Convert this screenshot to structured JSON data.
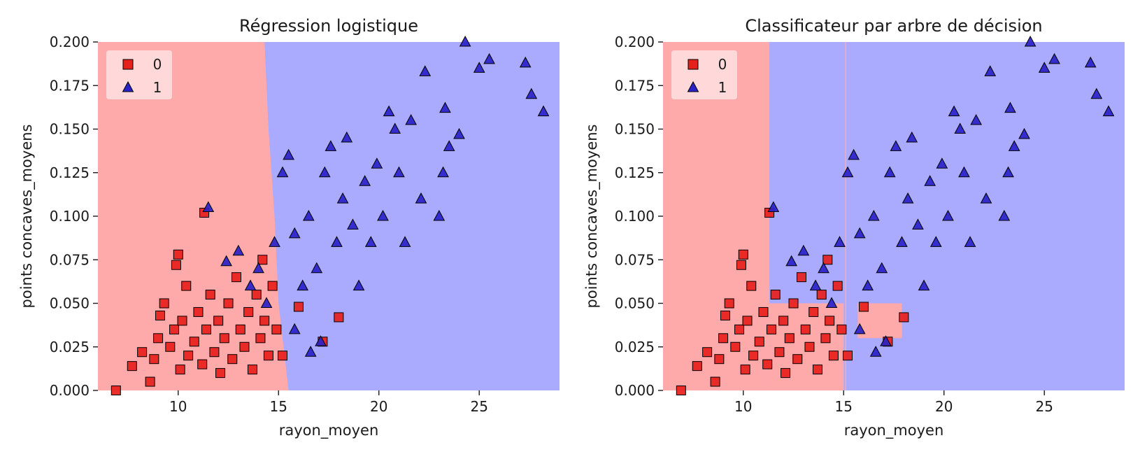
{
  "figure": {
    "panels": [
      {
        "title": "Régression logistique",
        "xlabel": "rayon_moyen",
        "ylabel": "points concaves_moyens"
      },
      {
        "title": "Classificateur par arbre de décision",
        "xlabel": "rayon_moyen",
        "ylabel": "points concaves_moyens"
      }
    ],
    "legend": [
      {
        "label": "0",
        "marker": "square",
        "color": "#e8201c"
      },
      {
        "label": "1",
        "marker": "triangle",
        "color": "#2a22c8"
      }
    ],
    "colors": {
      "region_0": "#ffaaaa",
      "region_1": "#aaaaff",
      "class_0": "#e8201c",
      "class_1": "#2a22c8"
    }
  },
  "chart_data": [
    {
      "type": "scatter",
      "title": "Régression logistique",
      "xlabel": "rayon_moyen",
      "ylabel": "points concaves_moyens",
      "xlim": [
        6,
        29
      ],
      "ylim": [
        0,
        0.2
      ],
      "xticks": [
        "10",
        "15",
        "20",
        "25"
      ],
      "yticks": [
        "0.000",
        "0.025",
        "0.050",
        "0.075",
        "0.100",
        "0.125",
        "0.150",
        "0.175",
        "0.200"
      ],
      "legend_position": "top-left",
      "decision_boundary": {
        "class_0_region": "left",
        "boundary_points": [
          [
            15.5,
            0.0
          ],
          [
            15.0,
            0.05
          ],
          [
            14.8,
            0.1
          ],
          [
            14.5,
            0.15
          ],
          [
            14.3,
            0.2
          ]
        ]
      },
      "series": [
        {
          "name": "0",
          "marker": "square",
          "points": [
            [
              6.9,
              0.0
            ],
            [
              7.7,
              0.014
            ],
            [
              8.2,
              0.022
            ],
            [
              8.6,
              0.005
            ],
            [
              8.8,
              0.018
            ],
            [
              9.0,
              0.03
            ],
            [
              9.1,
              0.043
            ],
            [
              9.3,
              0.05
            ],
            [
              9.6,
              0.025
            ],
            [
              9.8,
              0.035
            ],
            [
              10.1,
              0.012
            ],
            [
              10.2,
              0.04
            ],
            [
              10.4,
              0.06
            ],
            [
              10.5,
              0.02
            ],
            [
              10.8,
              0.028
            ],
            [
              11.0,
              0.045
            ],
            [
              11.2,
              0.015
            ],
            [
              11.4,
              0.035
            ],
            [
              11.6,
              0.055
            ],
            [
              11.8,
              0.022
            ],
            [
              12.0,
              0.04
            ],
            [
              12.1,
              0.01
            ],
            [
              12.3,
              0.03
            ],
            [
              12.5,
              0.05
            ],
            [
              12.7,
              0.018
            ],
            [
              12.9,
              0.065
            ],
            [
              13.1,
              0.035
            ],
            [
              13.3,
              0.025
            ],
            [
              13.5,
              0.045
            ],
            [
              13.7,
              0.012
            ],
            [
              13.9,
              0.055
            ],
            [
              14.1,
              0.03
            ],
            [
              14.3,
              0.04
            ],
            [
              14.5,
              0.02
            ],
            [
              14.7,
              0.06
            ],
            [
              14.9,
              0.035
            ],
            [
              15.2,
              0.02
            ],
            [
              16.0,
              0.048
            ],
            [
              17.2,
              0.028
            ],
            [
              18.0,
              0.042
            ],
            [
              9.9,
              0.072
            ],
            [
              10.0,
              0.078
            ],
            [
              11.3,
              0.102
            ],
            [
              14.2,
              0.075
            ]
          ]
        },
        {
          "name": "1",
          "marker": "triangle",
          "points": [
            [
              11.5,
              0.105
            ],
            [
              12.4,
              0.074
            ],
            [
              13.0,
              0.08
            ],
            [
              13.6,
              0.06
            ],
            [
              14.0,
              0.07
            ],
            [
              14.4,
              0.05
            ],
            [
              14.8,
              0.085
            ],
            [
              15.2,
              0.125
            ],
            [
              15.5,
              0.135
            ],
            [
              15.8,
              0.09
            ],
            [
              16.2,
              0.06
            ],
            [
              16.5,
              0.1
            ],
            [
              16.9,
              0.07
            ],
            [
              17.3,
              0.125
            ],
            [
              17.6,
              0.14
            ],
            [
              17.9,
              0.085
            ],
            [
              18.2,
              0.11
            ],
            [
              18.4,
              0.145
            ],
            [
              18.7,
              0.095
            ],
            [
              19.0,
              0.06
            ],
            [
              19.3,
              0.12
            ],
            [
              19.6,
              0.085
            ],
            [
              19.9,
              0.13
            ],
            [
              20.2,
              0.1
            ],
            [
              20.5,
              0.16
            ],
            [
              20.8,
              0.15
            ],
            [
              21.0,
              0.125
            ],
            [
              21.3,
              0.085
            ],
            [
              21.6,
              0.155
            ],
            [
              22.1,
              0.11
            ],
            [
              22.3,
              0.183
            ],
            [
              23.2,
              0.125
            ],
            [
              23.3,
              0.162
            ],
            [
              23.5,
              0.14
            ],
            [
              24.0,
              0.147
            ],
            [
              24.3,
              0.2
            ],
            [
              25.0,
              0.185
            ],
            [
              25.5,
              0.19
            ],
            [
              27.3,
              0.188
            ],
            [
              27.6,
              0.17
            ],
            [
              28.2,
              0.16
            ],
            [
              23.0,
              0.1
            ],
            [
              16.6,
              0.022
            ],
            [
              17.1,
              0.028
            ],
            [
              15.8,
              0.035
            ]
          ]
        }
      ]
    },
    {
      "type": "scatter",
      "title": "Classificateur par arbre de décision",
      "xlabel": "rayon_moyen",
      "ylabel": "points concaves_moyens",
      "xlim": [
        6,
        29
      ],
      "ylim": [
        0,
        0.2
      ],
      "xticks": [
        "10",
        "15",
        "20",
        "25"
      ],
      "yticks": [
        "0.000",
        "0.025",
        "0.050",
        "0.075",
        "0.100",
        "0.125",
        "0.150",
        "0.175",
        "0.200"
      ],
      "legend_position": "top-left",
      "decision_regions": {
        "background": "1",
        "class_0_boxes": [
          [
            6,
            11.3,
            0,
            0.2
          ],
          [
            11.3,
            15.0,
            0,
            0.05
          ],
          [
            15.7,
            17.9,
            0.03,
            0.05
          ]
        ],
        "thin_split_x": 15.1
      },
      "series": [
        {
          "name": "0",
          "marker": "square",
          "points": [
            [
              6.9,
              0.0
            ],
            [
              7.7,
              0.014
            ],
            [
              8.2,
              0.022
            ],
            [
              8.6,
              0.005
            ],
            [
              8.8,
              0.018
            ],
            [
              9.0,
              0.03
            ],
            [
              9.1,
              0.043
            ],
            [
              9.3,
              0.05
            ],
            [
              9.6,
              0.025
            ],
            [
              9.8,
              0.035
            ],
            [
              10.1,
              0.012
            ],
            [
              10.2,
              0.04
            ],
            [
              10.4,
              0.06
            ],
            [
              10.5,
              0.02
            ],
            [
              10.8,
              0.028
            ],
            [
              11.0,
              0.045
            ],
            [
              11.2,
              0.015
            ],
            [
              11.4,
              0.035
            ],
            [
              11.6,
              0.055
            ],
            [
              11.8,
              0.022
            ],
            [
              12.0,
              0.04
            ],
            [
              12.1,
              0.01
            ],
            [
              12.3,
              0.03
            ],
            [
              12.5,
              0.05
            ],
            [
              12.7,
              0.018
            ],
            [
              12.9,
              0.065
            ],
            [
              13.1,
              0.035
            ],
            [
              13.3,
              0.025
            ],
            [
              13.5,
              0.045
            ],
            [
              13.7,
              0.012
            ],
            [
              13.9,
              0.055
            ],
            [
              14.1,
              0.03
            ],
            [
              14.3,
              0.04
            ],
            [
              14.5,
              0.02
            ],
            [
              14.7,
              0.06
            ],
            [
              14.9,
              0.035
            ],
            [
              15.2,
              0.02
            ],
            [
              16.0,
              0.048
            ],
            [
              17.2,
              0.028
            ],
            [
              18.0,
              0.042
            ],
            [
              9.9,
              0.072
            ],
            [
              10.0,
              0.078
            ],
            [
              11.3,
              0.102
            ],
            [
              14.2,
              0.075
            ]
          ]
        },
        {
          "name": "1",
          "marker": "triangle",
          "points": [
            [
              11.5,
              0.105
            ],
            [
              12.4,
              0.074
            ],
            [
              13.0,
              0.08
            ],
            [
              13.6,
              0.06
            ],
            [
              14.0,
              0.07
            ],
            [
              14.4,
              0.05
            ],
            [
              14.8,
              0.085
            ],
            [
              15.2,
              0.125
            ],
            [
              15.5,
              0.135
            ],
            [
              15.8,
              0.09
            ],
            [
              16.2,
              0.06
            ],
            [
              16.5,
              0.1
            ],
            [
              16.9,
              0.07
            ],
            [
              17.3,
              0.125
            ],
            [
              17.6,
              0.14
            ],
            [
              17.9,
              0.085
            ],
            [
              18.2,
              0.11
            ],
            [
              18.4,
              0.145
            ],
            [
              18.7,
              0.095
            ],
            [
              19.0,
              0.06
            ],
            [
              19.3,
              0.12
            ],
            [
              19.6,
              0.085
            ],
            [
              19.9,
              0.13
            ],
            [
              20.2,
              0.1
            ],
            [
              20.5,
              0.16
            ],
            [
              20.8,
              0.15
            ],
            [
              21.0,
              0.125
            ],
            [
              21.3,
              0.085
            ],
            [
              21.6,
              0.155
            ],
            [
              22.1,
              0.11
            ],
            [
              22.3,
              0.183
            ],
            [
              23.2,
              0.125
            ],
            [
              23.3,
              0.162
            ],
            [
              23.5,
              0.14
            ],
            [
              24.0,
              0.147
            ],
            [
              24.3,
              0.2
            ],
            [
              25.0,
              0.185
            ],
            [
              25.5,
              0.19
            ],
            [
              27.3,
              0.188
            ],
            [
              27.6,
              0.17
            ],
            [
              28.2,
              0.16
            ],
            [
              23.0,
              0.1
            ],
            [
              16.6,
              0.022
            ],
            [
              17.1,
              0.028
            ],
            [
              15.8,
              0.035
            ]
          ]
        }
      ]
    }
  ]
}
